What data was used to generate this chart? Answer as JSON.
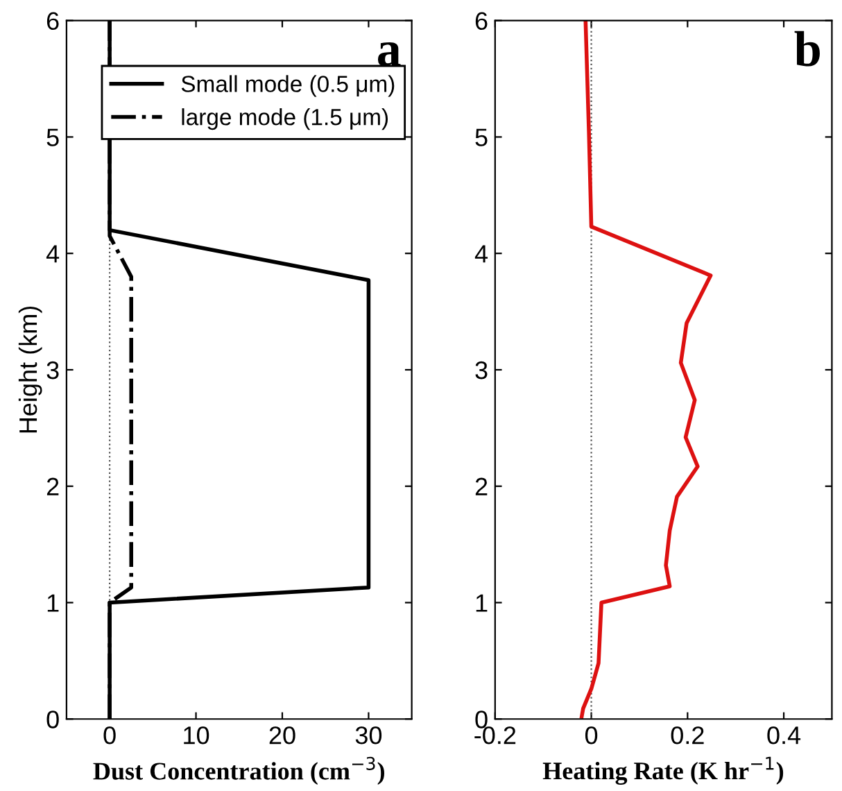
{
  "chart_data": [
    {
      "type": "line",
      "ylabel": "Height (km)",
      "xlabel": "Dust Concentration (cm$^{−3}$)",
      "annotations": [
        "a"
      ],
      "xlim": [
        -5,
        35
      ],
      "xticks": [
        0,
        10,
        20,
        30
      ],
      "ylim": [
        0,
        6
      ],
      "yticks": [
        0,
        1,
        2,
        3,
        4,
        5,
        6
      ],
      "grid": false,
      "legend": "top right",
      "ref_lines": [
        {
          "axis": "x",
          "value": 0,
          "color": "#555555",
          "line_style": "dotted"
        }
      ],
      "series": [
        {
          "name": "Small mode (0.5 μm)",
          "color": "#000000",
          "line_style": "solid",
          "x": [
            0,
            0,
            30,
            30,
            0,
            0
          ],
          "values": [
            0,
            1,
            1.13,
            3.77,
            4.2,
            6
          ]
        },
        {
          "name": "large mode (1.5 μm)",
          "color": "#000000",
          "line_style": "dashdot",
          "x": [
            0,
            0,
            2.5,
            2.5,
            0,
            0
          ],
          "values": [
            0,
            1,
            1.13,
            3.8,
            4.15,
            6
          ]
        }
      ]
    },
    {
      "type": "line",
      "xlabel": "Heating Rate (K hr$^{−1}$)",
      "annotations": [
        "b"
      ],
      "xlim": [
        -0.2,
        0.5
      ],
      "xticks": [
        -0.2,
        0,
        0.2,
        0.4
      ],
      "ylim": [
        0,
        6
      ],
      "yticks": [
        0,
        1,
        2,
        3,
        4,
        5,
        6
      ],
      "grid": false,
      "ref_lines": [
        {
          "axis": "x",
          "value": 0,
          "color": "#555555",
          "line_style": "dotted"
        }
      ],
      "series": [
        {
          "color": "#dd1111",
          "line_style": "solid",
          "x": [
            -0.02,
            -0.017,
            0,
            0.015,
            0.021,
            0.163,
            0.155,
            0.163,
            0.178,
            0.221,
            0.196,
            0.215,
            0.186,
            0.198,
            0.248,
            0,
            -0.005,
            -0.012
          ],
          "values": [
            0.02,
            0.09,
            0.26,
            0.48,
            1.0,
            1.14,
            1.32,
            1.62,
            1.91,
            2.17,
            2.42,
            2.74,
            3.06,
            3.4,
            3.81,
            4.23,
            5.04,
            6.0
          ]
        }
      ]
    }
  ]
}
